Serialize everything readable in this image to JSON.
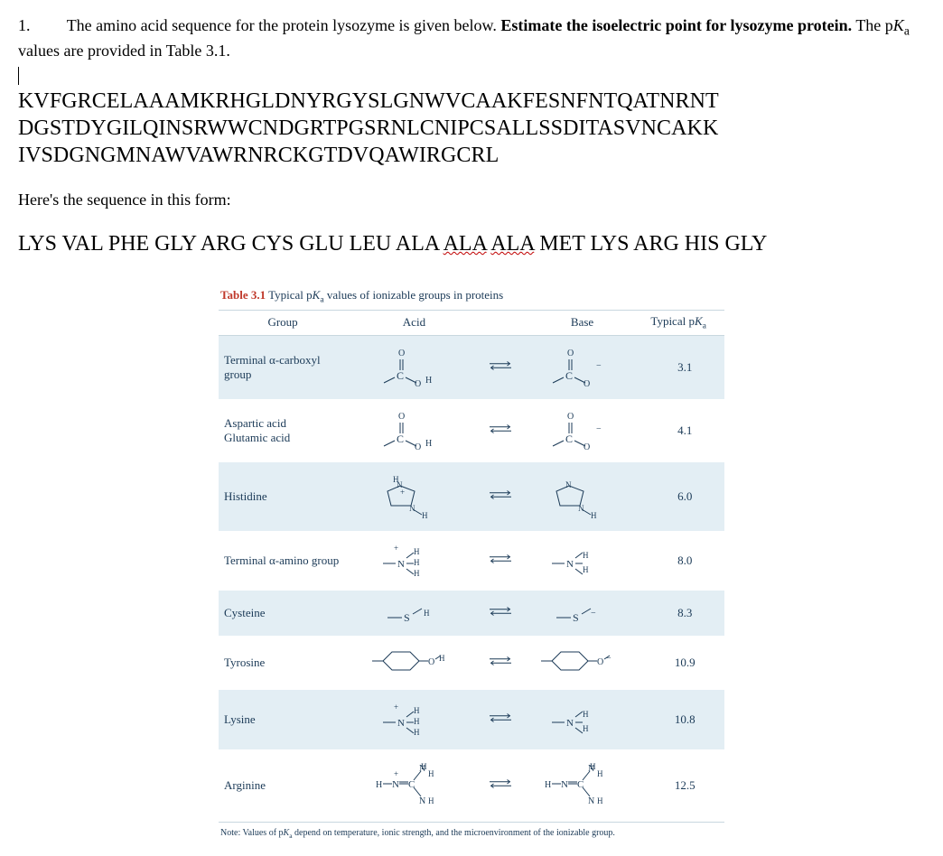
{
  "question": {
    "number": "1.",
    "text_part1": "The amino acid sequence for the protein lysozyme is given below. ",
    "bold_part": "Estimate the isoelectric point for lysozyme protein.",
    "text_part2_before_pka": " The p",
    "text_part2_ka": "K",
    "text_part2_sub": "a",
    "text_part2_after": " values are provided in Table 3.1."
  },
  "sequence_line1": "KVFGRCELAAAMKRHGLDNYRGYSLGNWVCAAKFESNFNTQATNRNT",
  "sequence_line2": "DGSTDYGILQINSRWWCNDGRTPGSRNLCNIPCSALLSSDITASVNCAKK",
  "sequence_line3": "IVSDGNGMNAWVAWRNRCKGTDVQAWIRGCRL",
  "subheading": "Here's the sequence in this form:",
  "three_letter": {
    "part1": "LYS VAL PHE GLY ARG CYS GLU LEU ALA ",
    "wavy1": "ALA",
    "mid": " ",
    "wavy2": "ALA",
    "part2": " MET LYS ARG HIS GLY"
  },
  "table": {
    "caption_label": "Table 3.1",
    "caption_desc_prefix": "Typical p",
    "caption_desc_K": "K",
    "caption_desc_sub": "a",
    "caption_desc_suffix": " values of ionizable groups in proteins",
    "headers": {
      "group": "Group",
      "acid": "Acid",
      "base": "Base",
      "pka_prefix": "Typical p",
      "pka_K": "K",
      "pka_sub": "a"
    },
    "rows": [
      {
        "group_lines": [
          "Terminal α-carboxyl",
          "group"
        ],
        "icon": "cooh",
        "pka": "3.1",
        "shade": "even"
      },
      {
        "group_lines": [
          "Aspartic acid",
          "Glutamic acid"
        ],
        "icon": "cooh",
        "pka": "4.1",
        "shade": "odd"
      },
      {
        "group_lines": [
          "Histidine"
        ],
        "icon": "his",
        "pka": "6.0",
        "shade": "even"
      },
      {
        "group_lines": [
          "Terminal α-amino group"
        ],
        "icon": "nh3",
        "pka": "8.0",
        "shade": "odd"
      },
      {
        "group_lines": [
          "Cysteine"
        ],
        "icon": "sh",
        "pka": "8.3",
        "shade": "even"
      },
      {
        "group_lines": [
          "Tyrosine"
        ],
        "icon": "tyr",
        "pka": "10.9",
        "shade": "odd"
      },
      {
        "group_lines": [
          "Lysine"
        ],
        "icon": "nh3",
        "pka": "10.8",
        "shade": "even"
      },
      {
        "group_lines": [
          "Arginine"
        ],
        "icon": "arg",
        "pka": "12.5",
        "shade": "odd"
      }
    ],
    "note_prefix": "Note: Values of p",
    "note_K": "K",
    "note_sub": "a",
    "note_suffix": " depend on temperature, ionic strength, and the microenvironment of the ionizable group.",
    "colors": {
      "even_row_bg": "#e3eef4",
      "odd_row_bg": "#ffffff",
      "header_text": "#1b3a57",
      "caption_label": "#c0392b",
      "border": "#c8d7df"
    }
  }
}
